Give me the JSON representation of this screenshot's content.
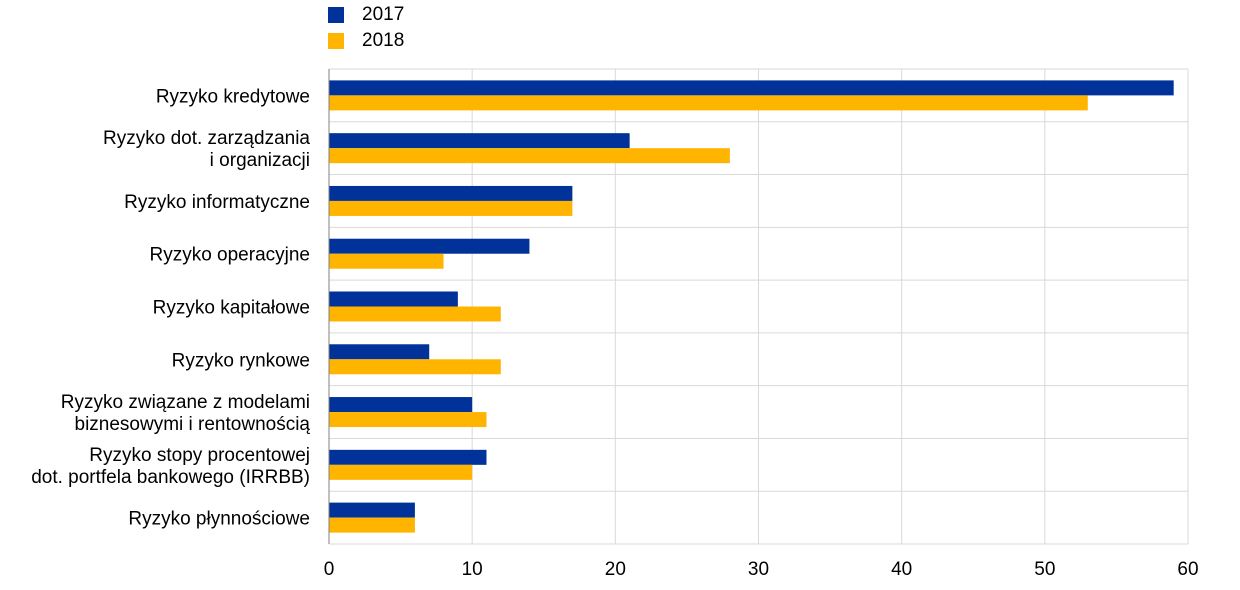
{
  "chart_data": {
    "type": "bar",
    "orientation": "horizontal",
    "categories": [
      [
        "Ryzyko kredytowe"
      ],
      [
        "Ryzyko dot. zarządzania",
        "i organizacji"
      ],
      [
        "Ryzyko informatyczne"
      ],
      [
        "Ryzyko operacyjne"
      ],
      [
        "Ryzyko kapitałowe"
      ],
      [
        "Ryzyko rynkowe"
      ],
      [
        "Ryzyko związane z modelami",
        "biznesowymi i rentownością"
      ],
      [
        "Ryzyko stopy procentowej",
        "dot. portfela bankowego (IRRBB)"
      ],
      [
        "Ryzyko płynnościowe"
      ]
    ],
    "series": [
      {
        "name": "2017",
        "color": "#003299",
        "values": [
          59,
          21,
          17,
          14,
          9,
          7,
          10,
          11,
          6
        ]
      },
      {
        "name": "2018",
        "color": "#FFB400",
        "values": [
          53,
          28,
          17,
          8,
          12,
          12,
          11,
          10,
          6
        ]
      }
    ],
    "xlim": [
      0,
      60
    ],
    "xticks": [
      0,
      10,
      20,
      30,
      40,
      50,
      60
    ],
    "grid": true,
    "legend_position": "top-left"
  }
}
